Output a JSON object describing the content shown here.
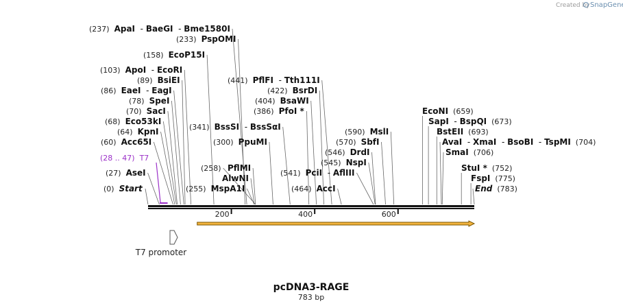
{
  "map": {
    "name": "pcDNA3-RAGE",
    "length_text": "783 bp",
    "length": 783,
    "credit_prefix": "Created by",
    "credit_brand": "SnapGene"
  },
  "colors": {
    "backbone": "#111111",
    "primer": "#9b30c8",
    "orf_fill": "#f2b33d",
    "orf_stroke": "#7a5400",
    "feature_outline": "#555555"
  },
  "ticks": [
    {
      "value": 200,
      "label": "200"
    },
    {
      "value": 400,
      "label": "400"
    },
    {
      "value": 600,
      "label": "600"
    }
  ],
  "primer": {
    "start": 28,
    "end": 47,
    "pos_label": "(28 .. 47)",
    "name": "T7"
  },
  "orf": {
    "start": 118,
    "end": 783
  },
  "feature": {
    "name": "T7 promoter",
    "start": 28,
    "end": 47
  },
  "sites": [
    {
      "parts": [
        {
          "pos": "(237)",
          "name": "ApaI"
        },
        {
          "name": "BaeGI"
        },
        {
          "name": "Bme1580I"
        }
      ],
      "cut": 237
    },
    {
      "parts": [
        {
          "pos": "(233)",
          "name": "PspOMI"
        }
      ],
      "cut": 233
    },
    {
      "parts": [
        {
          "pos": "(158)",
          "name": "EcoP15I"
        }
      ],
      "cut": 158
    },
    {
      "parts": [
        {
          "pos": "(103)",
          "name": "ApoI"
        },
        {
          "name": "EcoRI"
        }
      ],
      "cut": 103
    },
    {
      "parts": [
        {
          "pos": "(89)",
          "name": "BsiEI"
        }
      ],
      "cut": 89
    },
    {
      "parts": [
        {
          "pos": "(86)",
          "name": "EaeI"
        },
        {
          "name": "EagI"
        }
      ],
      "cut": 86
    },
    {
      "parts": [
        {
          "pos": "(78)",
          "name": "SpeI"
        }
      ],
      "cut": 78
    },
    {
      "parts": [
        {
          "pos": "(70)",
          "name": "SacI"
        }
      ],
      "cut": 70
    },
    {
      "parts": [
        {
          "pos": "(68)",
          "name": "Eco53kI"
        }
      ],
      "cut": 68
    },
    {
      "parts": [
        {
          "pos": "(64)",
          "name": "KpnI"
        }
      ],
      "cut": 64
    },
    {
      "parts": [
        {
          "pos": "(60)",
          "name": "Acc65I"
        }
      ],
      "cut": 60
    },
    {
      "parts": [
        {
          "pos": "(27)",
          "name": "AseI"
        }
      ],
      "cut": 27
    },
    {
      "parts": [
        {
          "pos": "(0)",
          "name": "Start",
          "italic": true
        }
      ],
      "cut": 0
    },
    {
      "parts": [
        {
          "pos": "(441)",
          "name": "PflFI"
        },
        {
          "name": "Tth111I"
        }
      ],
      "cut": 441
    },
    {
      "parts": [
        {
          "pos": "(422)",
          "name": "BsrDI"
        }
      ],
      "cut": 422
    },
    {
      "parts": [
        {
          "pos": "(404)",
          "name": "BsaWI"
        }
      ],
      "cut": 404
    },
    {
      "parts": [
        {
          "pos": "(386)",
          "name": "PfoI *"
        }
      ],
      "cut": 386
    },
    {
      "parts": [
        {
          "pos": "(341)",
          "name": "BssSI"
        },
        {
          "name": "BssSαI"
        }
      ],
      "cut": 341
    },
    {
      "parts": [
        {
          "pos": "(300)",
          "name": "PpuMI"
        }
      ],
      "cut": 300
    },
    {
      "parts": [
        {
          "name": "PflMI"
        }
      ],
      "cut": 258
    },
    {
      "parts": [
        {
          "pos": "(258)"
        }
      ],
      "cut": 258
    },
    {
      "parts": [
        {
          "name": "AlwNI"
        }
      ],
      "cut": 255
    },
    {
      "parts": [
        {
          "pos": "(255)",
          "name": "MspA1I"
        }
      ],
      "cut": 255
    },
    {
      "parts": [
        {
          "pos": "(541)",
          "name": "PciI"
        },
        {
          "name": "AflIII"
        }
      ],
      "cut": 541
    },
    {
      "parts": [
        {
          "pos": "(464)",
          "name": "AccI"
        }
      ],
      "cut": 464
    },
    {
      "parts": [
        {
          "pos": "(590)",
          "name": "MslI"
        }
      ],
      "cut": 590
    },
    {
      "parts": [
        {
          "pos": "(570)",
          "name": "SbfI"
        }
      ],
      "cut": 570
    },
    {
      "parts": [
        {
          "pos": "(546)",
          "name": "DrdI"
        }
      ],
      "cut": 546
    },
    {
      "parts": [
        {
          "pos": "(545)",
          "name": "NspI"
        }
      ],
      "cut": 545
    },
    {
      "parts": [
        {
          "name": "EcoNI"
        },
        {
          "pos": "(659)"
        }
      ],
      "cut": 659
    },
    {
      "parts": [
        {
          "name": "SapI"
        },
        {
          "name": "BspQI"
        },
        {
          "pos": "(673)"
        }
      ],
      "cut": 673
    },
    {
      "parts": [
        {
          "name": "BstEII"
        },
        {
          "pos": "(693)"
        }
      ],
      "cut": 693
    },
    {
      "parts": [
        {
          "name": "AvaI"
        },
        {
          "name": "XmaI"
        },
        {
          "name": "BsoBI"
        },
        {
          "name": "TspMI"
        },
        {
          "pos": "(704)"
        }
      ],
      "cut": 704
    },
    {
      "parts": [
        {
          "name": "SmaI"
        },
        {
          "pos": "(706)"
        }
      ],
      "cut": 706
    },
    {
      "parts": [
        {
          "name": "StuI *"
        },
        {
          "pos": "(752)"
        }
      ],
      "cut": 752
    },
    {
      "parts": [
        {
          "name": "FspI"
        },
        {
          "pos": "(775)"
        }
      ],
      "cut": 775
    },
    {
      "parts": [
        {
          "name": "End",
          "italic": true
        },
        {
          "pos": "(783)"
        }
      ],
      "cut": 783
    }
  ]
}
